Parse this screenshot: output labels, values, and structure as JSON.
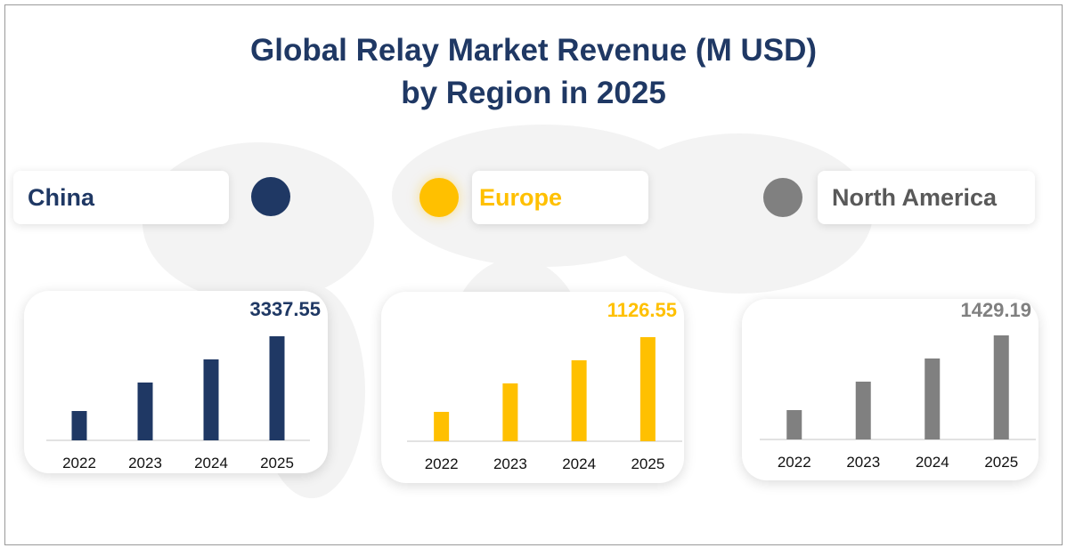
{
  "title_line1": "Global Relay Market Revenue (M USD)",
  "title_line2": "by Region in 2025",
  "chart_data": [
    {
      "type": "bar",
      "region": "China",
      "color": "#1f3864",
      "categories": [
        "2022",
        "2023",
        "2024",
        "2025"
      ],
      "values": [
        941,
        1854,
        2596,
        3337.55
      ],
      "value_label": "3337.55"
    },
    {
      "type": "bar",
      "region": "Europe",
      "color": "#ffc000",
      "categories": [
        "2022",
        "2023",
        "2024",
        "2025"
      ],
      "values": [
        318,
        626,
        876,
        1126.55
      ],
      "value_label": "1126.55"
    },
    {
      "type": "bar",
      "region": "North America",
      "color": "#808080",
      "categories": [
        "2022",
        "2023",
        "2024",
        "2025"
      ],
      "values": [
        403,
        794,
        1112,
        1429.19
      ],
      "value_label": "1429.19"
    }
  ]
}
